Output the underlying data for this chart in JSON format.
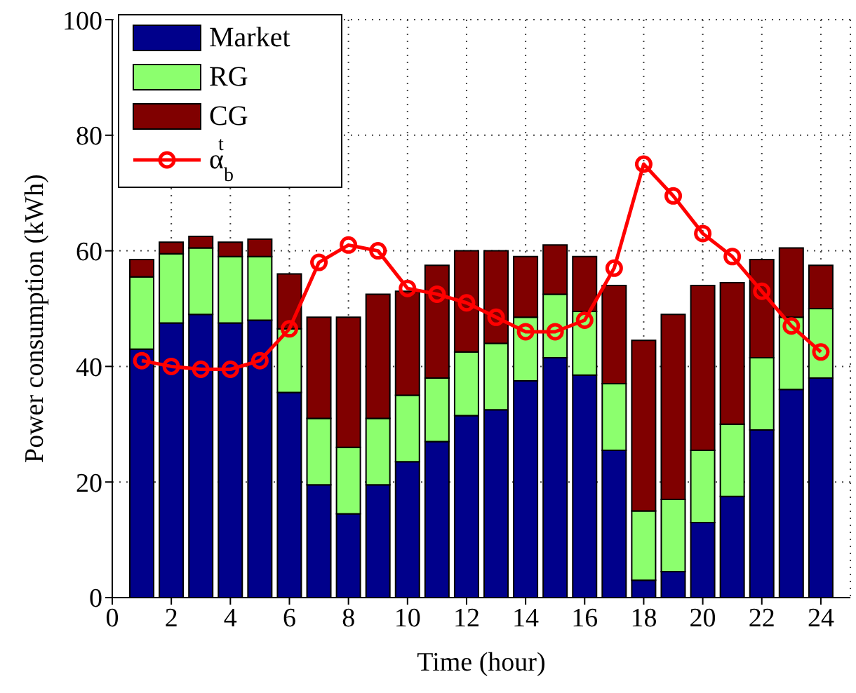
{
  "chart_data": {
    "type": "bar",
    "stacked": true,
    "xlabel": "Time (hour)",
    "ylabel": "Power consumption (kWh)",
    "x": [
      1,
      2,
      3,
      4,
      5,
      6,
      7,
      8,
      9,
      10,
      11,
      12,
      13,
      14,
      15,
      16,
      17,
      18,
      19,
      20,
      21,
      22,
      23,
      24
    ],
    "xlim": [
      0,
      25
    ],
    "xticks": [
      0,
      2,
      4,
      6,
      8,
      10,
      12,
      14,
      16,
      18,
      20,
      22,
      24
    ],
    "ylim": [
      0,
      100
    ],
    "yticks": [
      0,
      20,
      40,
      60,
      80,
      100
    ],
    "grid": true,
    "legend": "top left",
    "series": [
      {
        "name": "Market",
        "color": "#00008b",
        "values": [
          43,
          47.5,
          49,
          47.5,
          48,
          35.5,
          19.5,
          14.5,
          19.5,
          23.5,
          27,
          31.5,
          32.5,
          37.5,
          41.5,
          38.5,
          25.5,
          3,
          4.5,
          13,
          17.5,
          29,
          36,
          38
        ]
      },
      {
        "name": "RG",
        "color": "#8cff6e",
        "values": [
          12.5,
          12,
          11.5,
          11.5,
          11,
          11,
          11.5,
          11.5,
          11.5,
          11.5,
          11,
          11,
          11.5,
          11,
          11,
          11,
          11.5,
          12,
          12.5,
          12.5,
          12.5,
          12.5,
          12.5,
          12
        ]
      },
      {
        "name": "CG",
        "color": "#800000",
        "values": [
          3,
          2,
          2,
          2.5,
          3,
          9.5,
          17.5,
          22.5,
          21.5,
          18,
          19.5,
          17.5,
          16,
          10.5,
          8.5,
          9.5,
          17,
          29.5,
          32,
          28.5,
          24.5,
          17,
          12,
          7.5
        ]
      },
      {
        "name": "α$_{b}$$^{t}$",
        "type": "line",
        "color": "#ff0000",
        "marker": "circle",
        "line_style": "solid",
        "values": [
          41,
          40,
          39.5,
          39.5,
          41,
          46.5,
          58,
          61,
          60,
          53.5,
          52.5,
          51,
          48.5,
          46,
          46,
          48,
          57,
          75,
          69.5,
          63,
          59,
          53,
          47,
          42.5
        ]
      }
    ]
  }
}
